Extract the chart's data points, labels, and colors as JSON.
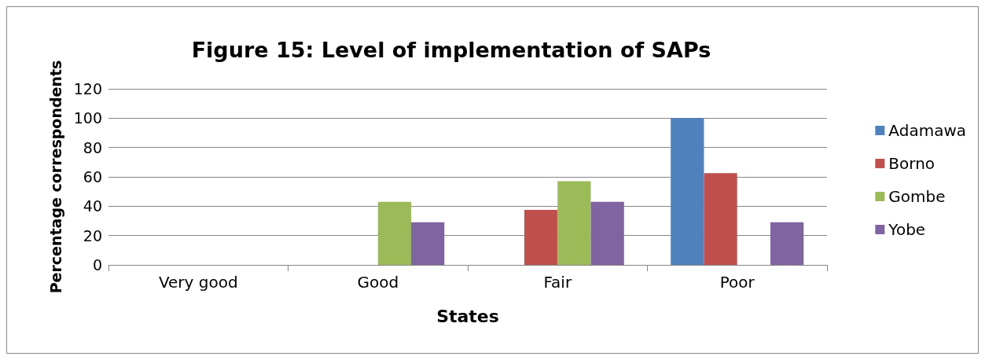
{
  "chart_data": {
    "type": "bar",
    "title": "Figure 15: Level of implementation of SAPs",
    "xlabel": "States",
    "ylabel": "Percentage correspondents",
    "categories": [
      "Very good",
      "Good",
      "Fair",
      "Poor"
    ],
    "series": [
      {
        "name": "Adamawa",
        "color": "#4f81bd",
        "values": [
          0,
          0,
          0,
          100
        ]
      },
      {
        "name": "Borno",
        "color": "#c0504d",
        "values": [
          0,
          0,
          37.5,
          62.5
        ]
      },
      {
        "name": "Gombe",
        "color": "#9bbb59",
        "values": [
          0,
          43,
          57,
          0
        ]
      },
      {
        "name": "Yobe",
        "color": "#8064a2",
        "values": [
          0,
          29,
          43,
          29
        ]
      }
    ],
    "ylim": [
      0,
      120
    ],
    "yticks": [
      0,
      20,
      40,
      60,
      80,
      100,
      120
    ],
    "grid": "y",
    "legend": "right"
  }
}
